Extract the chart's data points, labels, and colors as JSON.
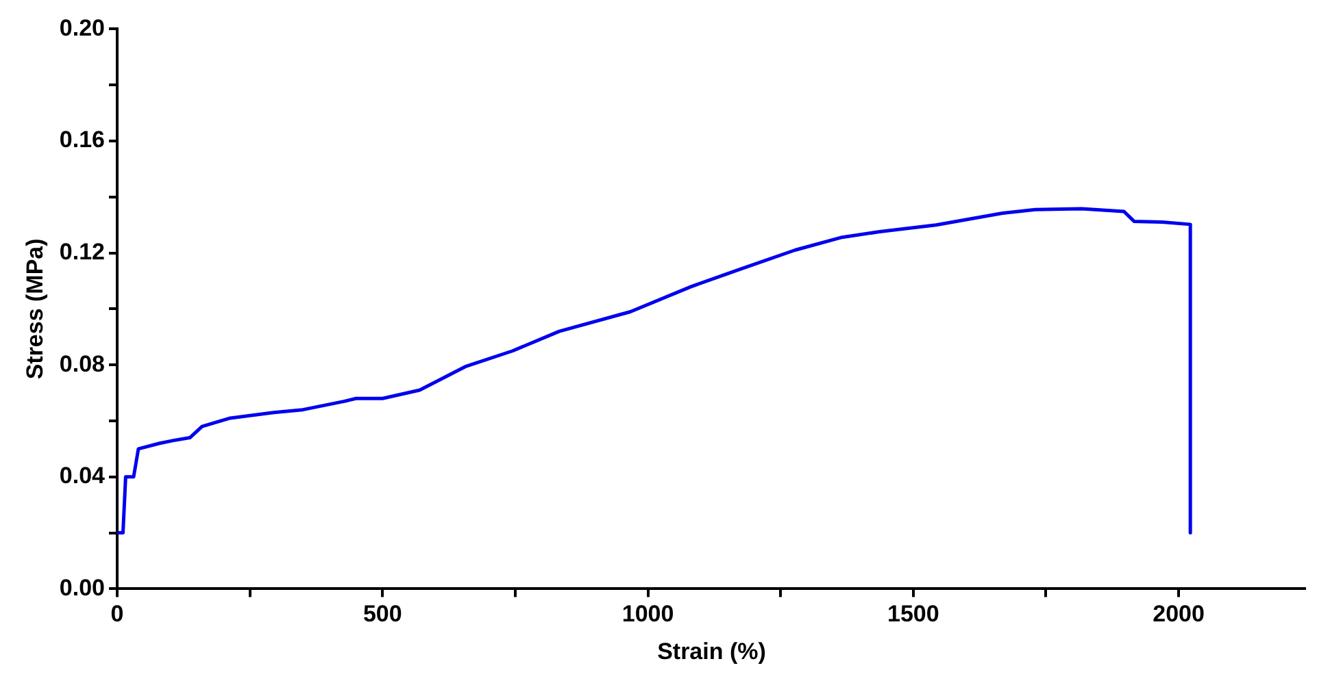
{
  "chart_data": {
    "type": "line",
    "xlabel": "Strain (%)",
    "ylabel": "Stress (MPa)",
    "xlim": [
      0,
      2240
    ],
    "xticks": [
      0,
      {
        "value": 250,
        "label": null
      },
      500,
      {
        "value": 750,
        "label": null
      },
      1000,
      {
        "value": 1250,
        "label": null
      },
      1500,
      {
        "value": 1750,
        "label": null
      },
      2000
    ],
    "ylim": [
      0,
      0.2
    ],
    "yticks": [
      "0.00",
      {
        "value": 0.02,
        "label": null
      },
      {
        "value": 0.04,
        "label": "0.04"
      },
      {
        "value": 0.06,
        "label": null
      },
      {
        "value": 0.08,
        "label": "0.08"
      },
      {
        "value": 0.1,
        "label": null
      },
      {
        "value": 0.12,
        "label": "0.12"
      },
      {
        "value": 0.14,
        "label": null
      },
      {
        "value": 0.16,
        "label": "0.16"
      },
      {
        "value": 0.18,
        "label": null
      },
      {
        "value": 0.2,
        "label": "0.20"
      }
    ],
    "grid": false,
    "legend": false,
    "marker": "none",
    "line_style": "solid",
    "series": [
      {
        "color": "#0000ee",
        "x": [
          0,
          11,
          16,
          31,
          40,
          80,
          106,
          137,
          160,
          213,
          295,
          350,
          428,
          450,
          500,
          570,
          656,
          745,
          833,
          967,
          1082,
          1171,
          1277,
          1366,
          1437,
          1543,
          1668,
          1730,
          1817,
          1897,
          1916,
          1969,
          2022,
          2022
        ],
        "values": [
          0.02,
          0.02,
          0.04,
          0.04,
          0.05,
          0.052,
          0.053,
          0.054,
          0.058,
          0.061,
          0.063,
          0.064,
          0.067,
          0.068,
          0.068,
          0.071,
          0.0794,
          0.085,
          0.092,
          0.099,
          0.108,
          0.114,
          0.121,
          0.1256,
          0.1276,
          0.13,
          0.1342,
          0.1355,
          0.1358,
          0.1348,
          0.1313,
          0.131,
          0.1302,
          0.02
        ]
      }
    ]
  }
}
